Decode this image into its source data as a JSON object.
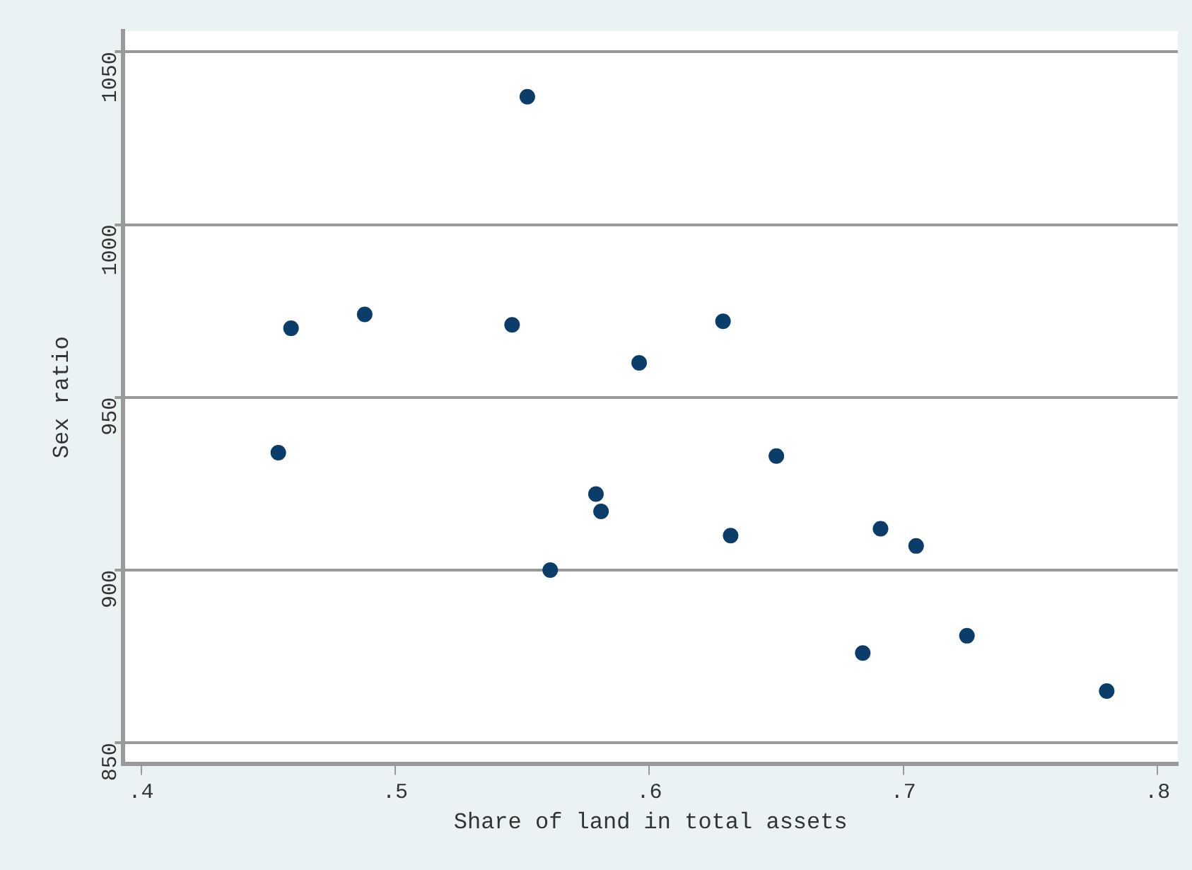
{
  "chart_data": {
    "type": "scatter",
    "xlabel": "Share of land in total assets",
    "ylabel": "Sex ratio",
    "x": [
      0.454,
      0.459,
      0.488,
      0.546,
      0.552,
      0.561,
      0.579,
      0.581,
      0.596,
      0.629,
      0.632,
      0.65,
      0.684,
      0.691,
      0.705,
      0.725,
      0.78
    ],
    "series": [
      {
        "color": "#0b3d6b",
        "values": [
          934,
          970,
          974,
          971,
          1037,
          900,
          922,
          917,
          960,
          972,
          910,
          933,
          876,
          912,
          907,
          881,
          865
        ]
      }
    ],
    "xlim": [
      0.393,
      0.808
    ],
    "ylim": [
      844,
      1056
    ],
    "xticks": [
      {
        "value": 0.4,
        "label": ".4"
      },
      {
        "value": 0.5,
        "label": ".5"
      },
      {
        "value": 0.6,
        "label": ".6"
      },
      {
        "value": 0.7,
        "label": ".7"
      },
      {
        "value": 0.8,
        "label": ".8"
      }
    ],
    "yticks": [
      850,
      900,
      950,
      1000,
      1050
    ],
    "grid": "y",
    "marker": "circle",
    "legend": false
  }
}
